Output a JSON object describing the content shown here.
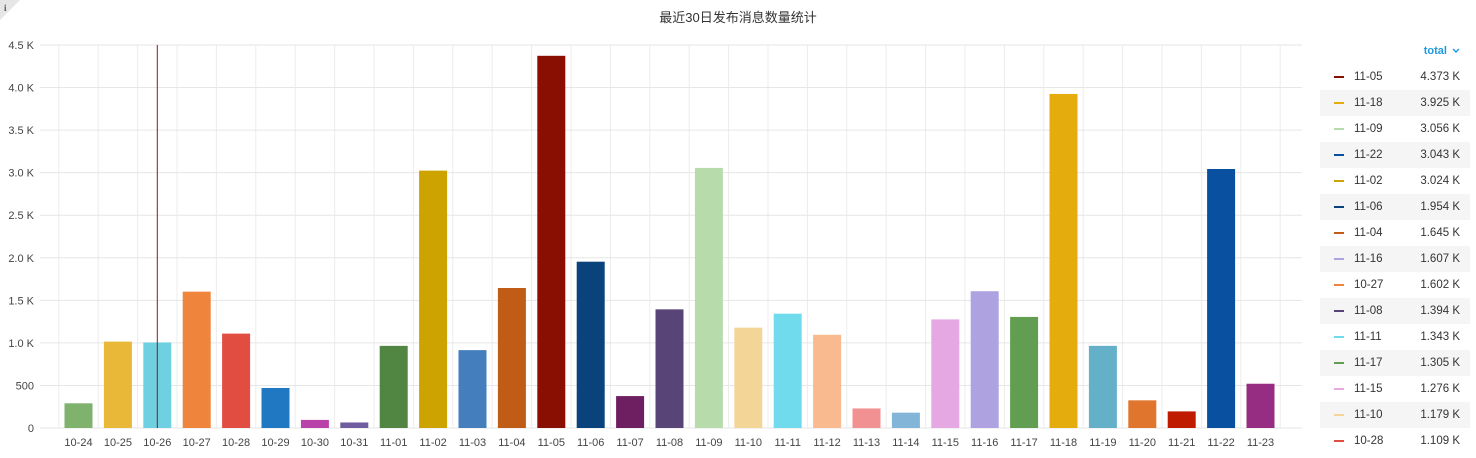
{
  "header": {
    "title": "最近30日发布消息数量统计",
    "info_icon": "info-icon"
  },
  "legend": {
    "header_label": "total",
    "header_icon": "chevron-down-icon"
  },
  "chart_data": {
    "type": "bar",
    "title": "最近30日发布消息数量统计",
    "categories": [
      "10-24",
      "10-25",
      "10-26",
      "10-27",
      "10-28",
      "10-29",
      "10-30",
      "10-31",
      "11-01",
      "11-02",
      "11-03",
      "11-04",
      "11-05",
      "11-06",
      "11-07",
      "11-08",
      "11-09",
      "11-10",
      "11-11",
      "11-12",
      "11-13",
      "11-14",
      "11-15",
      "11-16",
      "11-17",
      "11-18",
      "11-19",
      "11-20",
      "11-21",
      "11-22",
      "11-23"
    ],
    "values": [
      290,
      1015,
      1005,
      1602,
      1109,
      470,
      95,
      65,
      965,
      3024,
      915,
      1645,
      4373,
      1954,
      375,
      1394,
      3056,
      1179,
      1343,
      1095,
      230,
      180,
      1276,
      1607,
      1305,
      3925,
      965,
      325,
      195,
      3043,
      520
    ],
    "colors": [
      "#7eb26d",
      "#eab839",
      "#6ed0e0",
      "#ef843c",
      "#e24d42",
      "#1f78c1",
      "#ba43a9",
      "#705da0",
      "#508642",
      "#cca300",
      "#447ebc",
      "#c15c17",
      "#890f02",
      "#0a437c",
      "#6d1f62",
      "#584477",
      "#b7dbab",
      "#f4d598",
      "#70dbed",
      "#f9ba8f",
      "#f29191",
      "#82b5d8",
      "#e5a8e2",
      "#aea2e0",
      "#629e51",
      "#e5ac0e",
      "#64b0c8",
      "#e0752d",
      "#bf1b00",
      "#0a50a1",
      "#962d82"
    ],
    "y_ticks": [
      0,
      500,
      1000,
      1500,
      2000,
      2500,
      3000,
      3500,
      4000,
      4500
    ],
    "y_tick_labels": [
      "0",
      "500",
      "1.0 K",
      "1.5 K",
      "2.0 K",
      "2.5 K",
      "3.0 K",
      "3.5 K",
      "4.0 K",
      "4.5 K"
    ],
    "ylim": [
      0,
      4500
    ],
    "marker_category": "10-26",
    "marker_color": "#8b1a1a",
    "grid": true,
    "legend_position": "right",
    "legend": [
      {
        "label": "11-05",
        "value": "4.373 K",
        "color": "#890f02"
      },
      {
        "label": "11-18",
        "value": "3.925 K",
        "color": "#e5ac0e"
      },
      {
        "label": "11-09",
        "value": "3.056 K",
        "color": "#b7dbab"
      },
      {
        "label": "11-22",
        "value": "3.043 K",
        "color": "#0a50a1"
      },
      {
        "label": "11-02",
        "value": "3.024 K",
        "color": "#cca300"
      },
      {
        "label": "11-06",
        "value": "1.954 K",
        "color": "#0a437c"
      },
      {
        "label": "11-04",
        "value": "1.645 K",
        "color": "#c15c17"
      },
      {
        "label": "11-16",
        "value": "1.607 K",
        "color": "#aea2e0"
      },
      {
        "label": "10-27",
        "value": "1.602 K",
        "color": "#ef843c"
      },
      {
        "label": "11-08",
        "value": "1.394 K",
        "color": "#584477"
      },
      {
        "label": "11-11",
        "value": "1.343 K",
        "color": "#70dbed"
      },
      {
        "label": "11-17",
        "value": "1.305 K",
        "color": "#629e51"
      },
      {
        "label": "11-15",
        "value": "1.276 K",
        "color": "#e5a8e2"
      },
      {
        "label": "11-10",
        "value": "1.179 K",
        "color": "#f4d598"
      },
      {
        "label": "10-28",
        "value": "1.109 K",
        "color": "#e24d42"
      }
    ]
  }
}
